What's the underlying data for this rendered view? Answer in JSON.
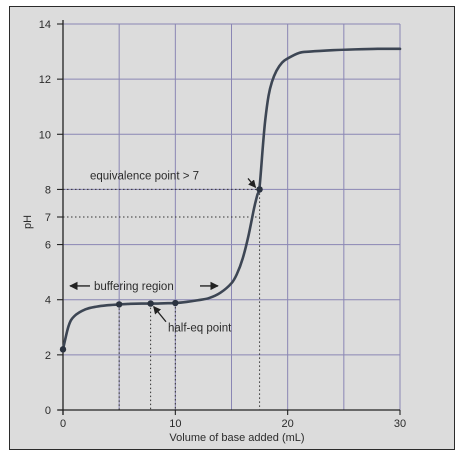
{
  "chart_data": {
    "type": "line",
    "title": "",
    "xlabel": "Volume of base added (mL)",
    "ylabel": "pH",
    "xlim": [
      0,
      30
    ],
    "ylim": [
      0,
      14
    ],
    "grid": true,
    "x_ticks": [
      "0",
      "10",
      "20",
      "30"
    ],
    "y_ticks": [
      "0",
      "2",
      "4",
      "6",
      "7",
      "8",
      "10",
      "12",
      "14"
    ],
    "series": [
      {
        "name": "",
        "x": [
          0,
          0.5,
          1,
          2,
          3,
          4,
          5,
          6,
          7,
          8,
          9,
          10,
          11,
          12,
          13,
          14,
          15,
          15.5,
          16,
          16.5,
          17,
          17.3,
          17.5,
          17.8,
          18,
          18.3,
          18.6,
          19,
          19.5,
          20,
          21,
          22,
          24,
          26,
          28,
          30
        ],
        "y": [
          2.2,
          3.05,
          3.4,
          3.65,
          3.75,
          3.8,
          3.83,
          3.85,
          3.86,
          3.86,
          3.87,
          3.88,
          3.92,
          3.98,
          4.06,
          4.25,
          4.6,
          4.95,
          5.5,
          6.3,
          7.3,
          7.8,
          8.1,
          9.6,
          10.5,
          11.4,
          11.9,
          12.3,
          12.6,
          12.75,
          12.95,
          13.0,
          13.05,
          13.08,
          13.1,
          13.1
        ]
      }
    ],
    "markers": [
      {
        "x": 0,
        "y": 2.2
      },
      {
        "x": 5,
        "y": 3.83
      },
      {
        "x": 7.8,
        "y": 3.86
      },
      {
        "x": 10,
        "y": 3.88
      },
      {
        "x": 17.5,
        "y": 8.0
      }
    ],
    "reference_lines": [
      {
        "axis": "y",
        "value": 7
      },
      {
        "axis": "y",
        "value": 8
      }
    ],
    "annotations": [
      {
        "text": "equivalence point > 7",
        "x": 17.5,
        "y": 8.0
      },
      {
        "text": "buffering region",
        "x": 6,
        "y": 4.6
      },
      {
        "text": "half-eq point",
        "x": 7.8,
        "y": 3.86
      }
    ]
  }
}
